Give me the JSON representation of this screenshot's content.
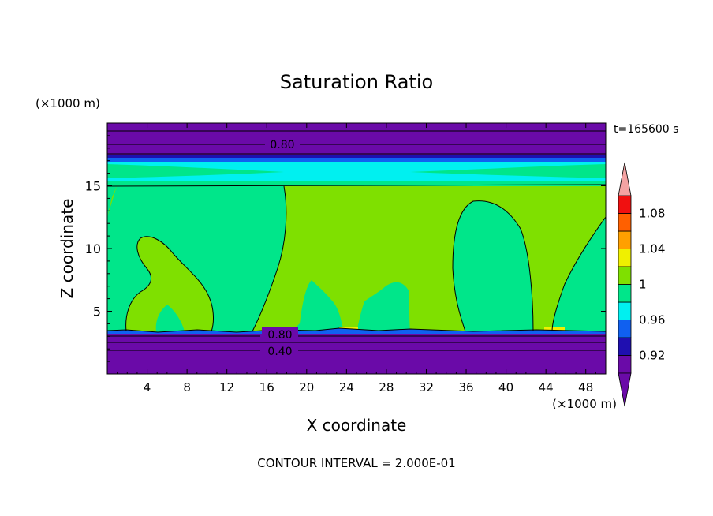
{
  "chart_data": {
    "type": "heatmap",
    "title": "Saturation Ratio",
    "xlabel": "X coordinate",
    "ylabel": "Z coordinate",
    "x_unit_label": "(×1000 m)",
    "y_unit_label": "(×1000 m)",
    "time_label": "t=165600 s",
    "footer": "CONTOUR INTERVAL = 2.000E-01",
    "xlim": [
      0,
      50
    ],
    "ylim": [
      0,
      20
    ],
    "x_ticks": [
      4,
      8,
      12,
      16,
      20,
      24,
      28,
      32,
      36,
      40,
      44,
      48
    ],
    "y_ticks": [
      5,
      10,
      15
    ],
    "contour_labels": [
      {
        "text": "0.80",
        "x": 17.5,
        "z": 18.2
      },
      {
        "text": "0.80",
        "x": 17.5,
        "z": 3.1
      },
      {
        "text": "0.40",
        "x": 17.5,
        "z": 1.8
      }
    ],
    "colorbar": {
      "levels": [
        0.9,
        0.92,
        0.94,
        0.96,
        0.98,
        1.0,
        1.02,
        1.04,
        1.06,
        1.08,
        1.1
      ],
      "tick_labels": [
        "0.92",
        "0.96",
        "1",
        "1.04",
        "1.08"
      ],
      "tick_values": [
        0.92,
        0.96,
        1.0,
        1.04,
        1.08
      ],
      "under_color": "#6a0aa8",
      "over_color": "#f4a3a3",
      "colors": [
        "#6a0aa8",
        "#1f0fb0",
        "#1060f0",
        "#00f0f0",
        "#00e68a",
        "#7fe000",
        "#f0f000",
        "#ffa000",
        "#ff6000",
        "#f01010"
      ]
    },
    "colors": {
      "purple": "#6a0aa8",
      "navy": "#1f0fb0",
      "blue": "#1060f0",
      "cyan": "#00f0f0",
      "teal": "#00e68a",
      "green": "#7fe000",
      "yellow": "#f0f000"
    }
  }
}
